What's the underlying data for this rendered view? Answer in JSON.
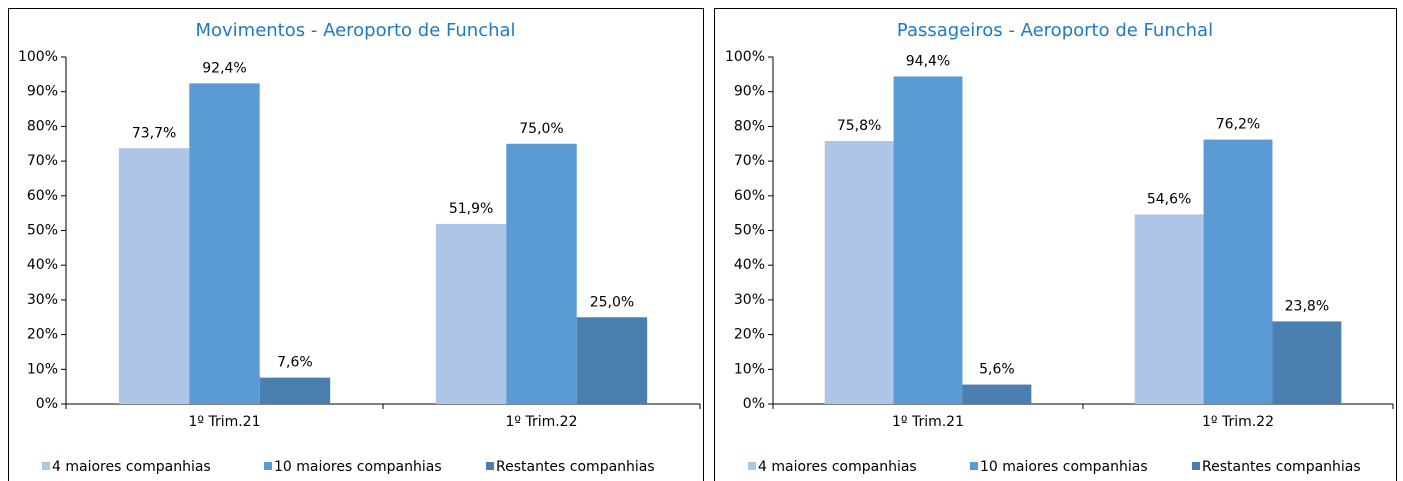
{
  "chart_data": [
    {
      "type": "bar",
      "title": "Movimentos - Aeroporto de Funchal",
      "categories": [
        "1º Trim.21",
        "1º Trim.22"
      ],
      "series": [
        {
          "name": "4 maiores companhias",
          "color": "#adc5e6",
          "values": [
            73.7,
            51.9
          ],
          "value_labels": [
            "73,7%",
            "51,9%"
          ]
        },
        {
          "name": "10 maiores companhias",
          "color": "#5b9bd5",
          "values": [
            92.4,
            75.0
          ],
          "value_labels": [
            "92,4%",
            "75,0%"
          ]
        },
        {
          "name": "Restantes companhias",
          "color": "#4a7fb0",
          "values": [
            7.6,
            25.0
          ],
          "value_labels": [
            "7,6%",
            "25,0%"
          ]
        }
      ],
      "ylim": [
        0,
        100
      ],
      "yticks": [
        {
          "value": 0,
          "label": "0%"
        },
        {
          "value": 10,
          "label": "10%"
        },
        {
          "value": 20,
          "label": "20%"
        },
        {
          "value": 30,
          "label": "30%"
        },
        {
          "value": 40,
          "label": "40%"
        },
        {
          "value": 50,
          "label": "50%"
        },
        {
          "value": 60,
          "label": "60%"
        },
        {
          "value": 70,
          "label": "70%"
        },
        {
          "value": 80,
          "label": "80%"
        },
        {
          "value": 90,
          "label": "90%"
        },
        {
          "value": 100,
          "label": "100%"
        }
      ],
      "legend": "bottom"
    },
    {
      "type": "bar",
      "title": "Passageiros - Aeroporto de Funchal",
      "categories": [
        "1º Trim.21",
        "1º Trim.22"
      ],
      "series": [
        {
          "name": "4 maiores companhias",
          "color": "#adc5e6",
          "values": [
            75.8,
            54.6
          ],
          "value_labels": [
            "75,8%",
            "54,6%"
          ]
        },
        {
          "name": "10 maiores companhias",
          "color": "#5b9bd5",
          "values": [
            94.4,
            76.2
          ],
          "value_labels": [
            "94,4%",
            "76,2%"
          ]
        },
        {
          "name": "Restantes companhias",
          "color": "#4a7fb0",
          "values": [
            5.6,
            23.8
          ],
          "value_labels": [
            "5,6%",
            "23,8%"
          ]
        }
      ],
      "ylim": [
        0,
        100
      ],
      "yticks": [
        {
          "value": 0,
          "label": "0%"
        },
        {
          "value": 10,
          "label": "10%"
        },
        {
          "value": 20,
          "label": "20%"
        },
        {
          "value": 30,
          "label": "30%"
        },
        {
          "value": 40,
          "label": "40%"
        },
        {
          "value": 50,
          "label": "50%"
        },
        {
          "value": 60,
          "label": "60%"
        },
        {
          "value": 70,
          "label": "70%"
        },
        {
          "value": 80,
          "label": "80%"
        },
        {
          "value": 90,
          "label": "90%"
        },
        {
          "value": 100,
          "label": "100%"
        }
      ],
      "legend": "bottom"
    }
  ]
}
